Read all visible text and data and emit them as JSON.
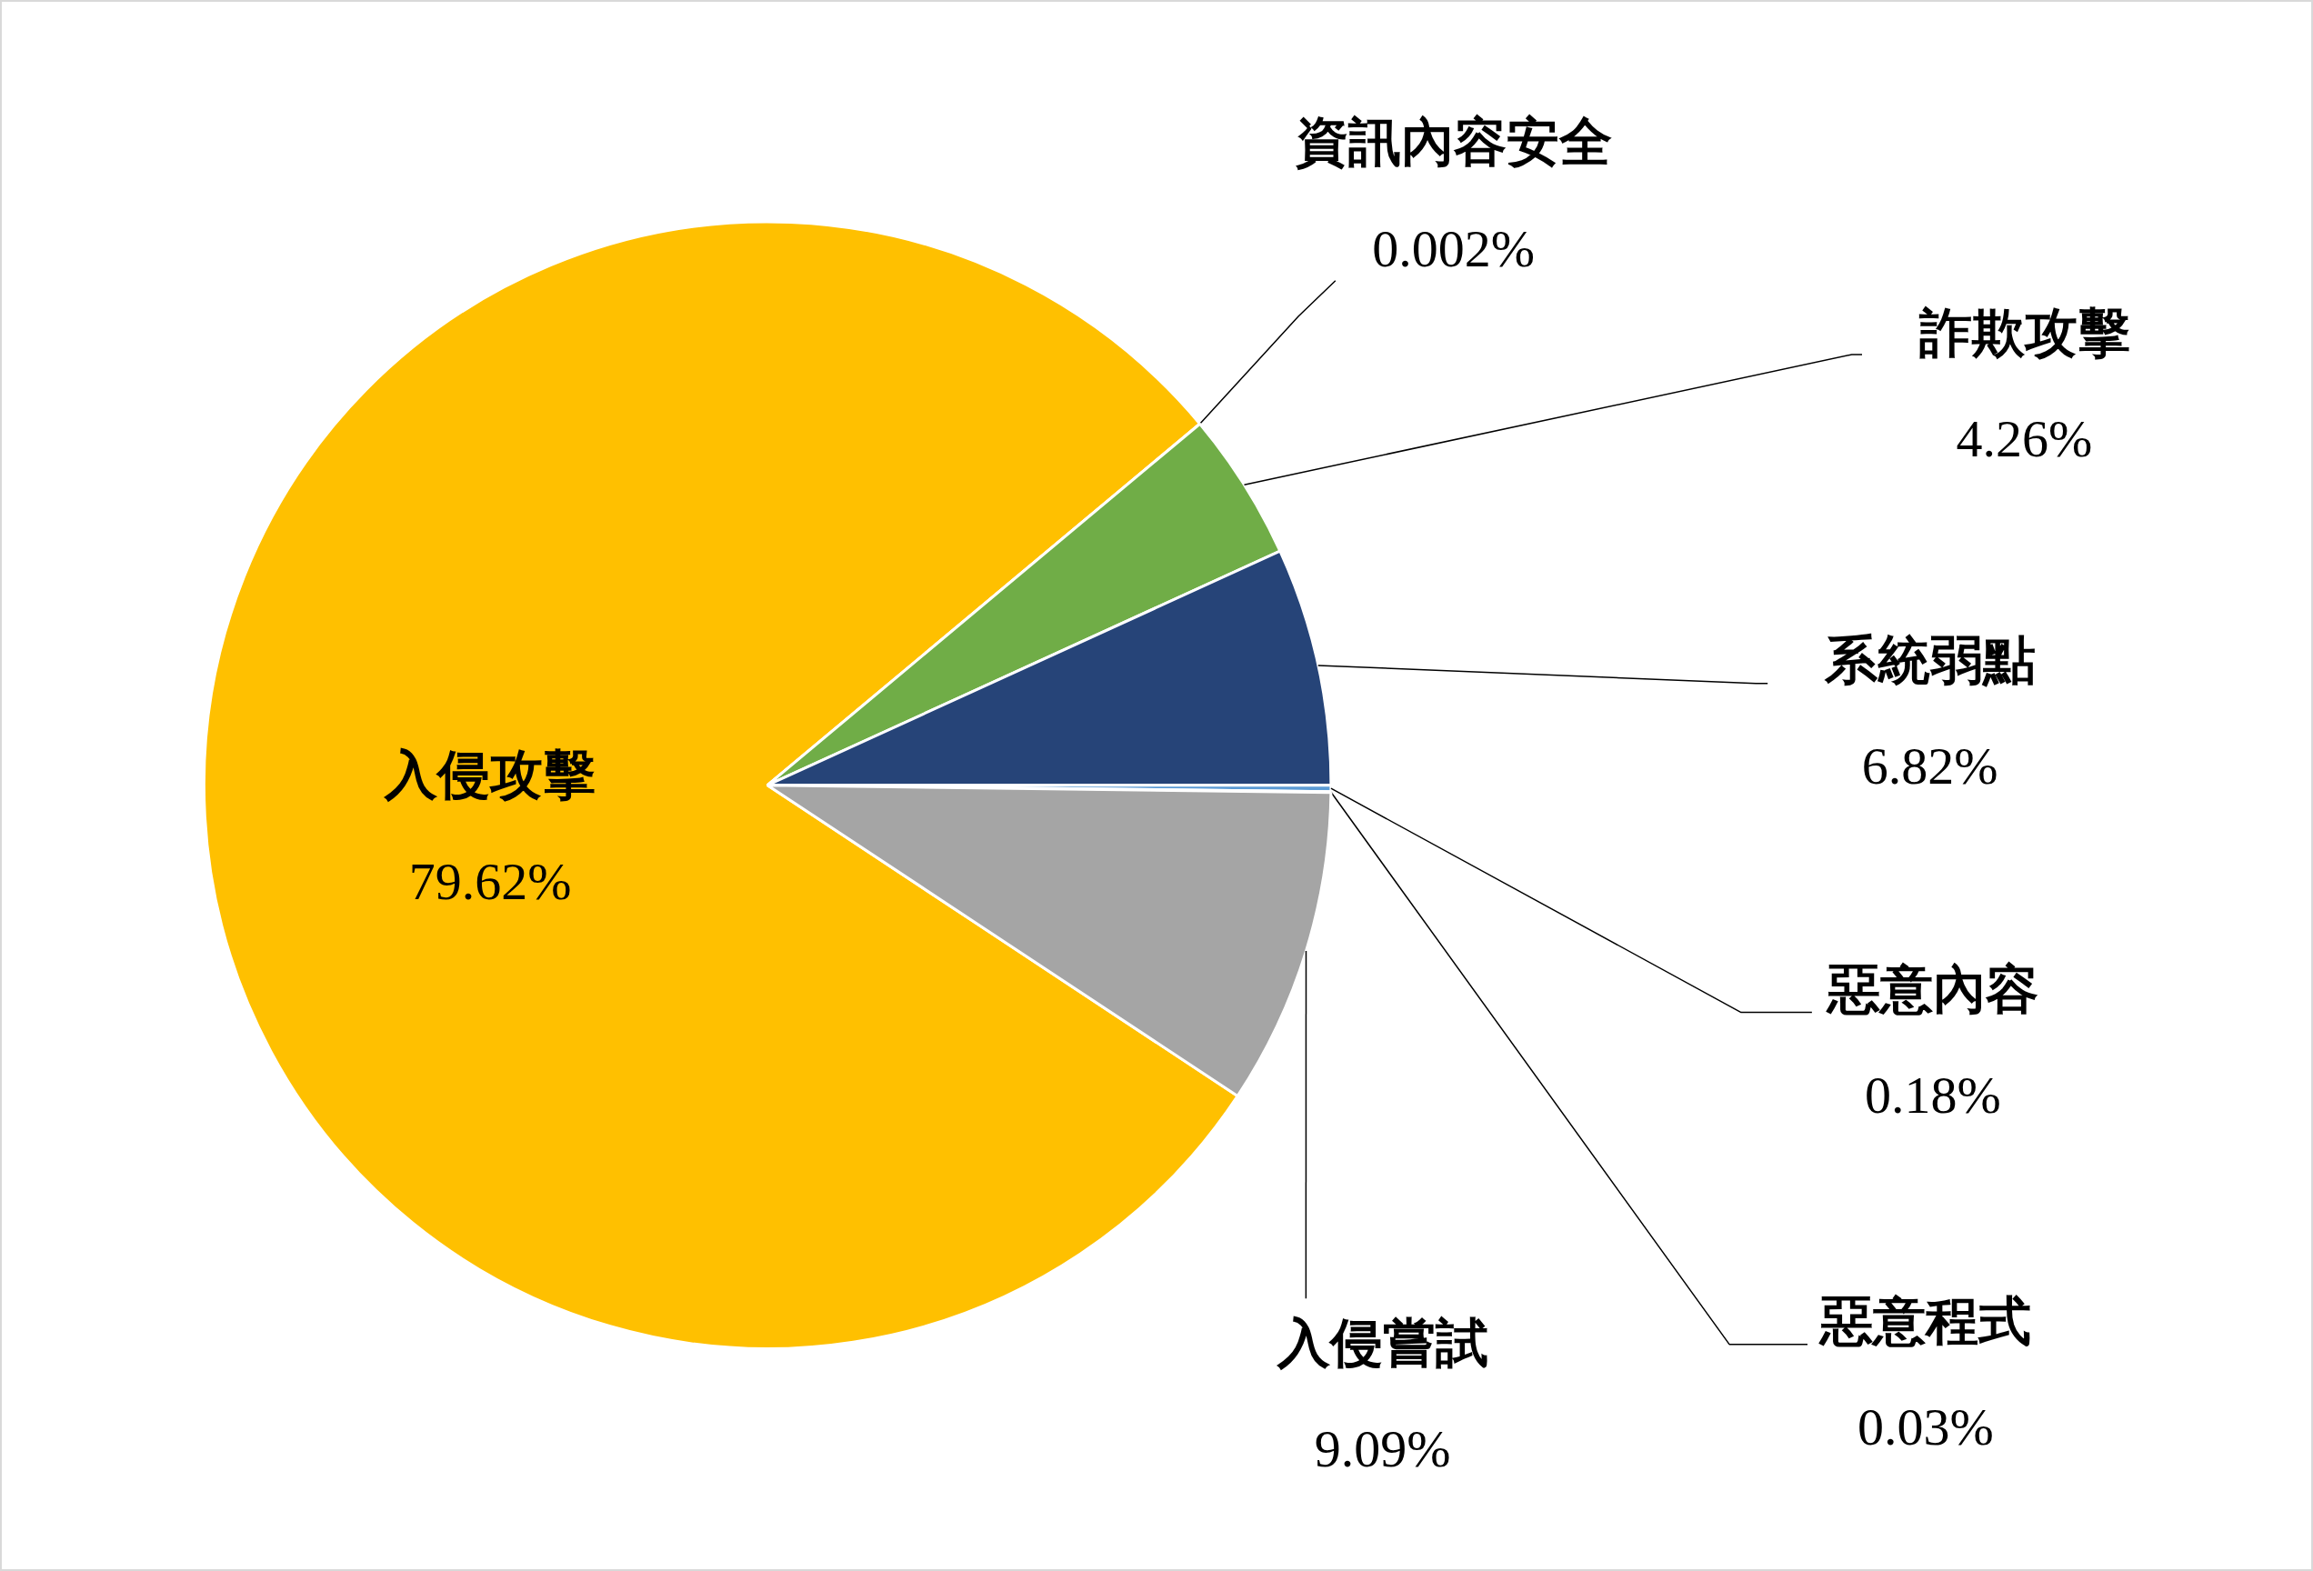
{
  "chart_data": {
    "type": "pie",
    "categories": [
      "入侵攻擊",
      "資訊內容安全",
      "詐欺攻擊",
      "系統弱點",
      "惡意內容",
      "惡意程式",
      "入侵嘗試"
    ],
    "values": [
      79.62,
      0.002,
      4.26,
      6.82,
      0.18,
      0.03,
      9.09
    ],
    "colors": [
      "#ffc000",
      "#c0504d",
      "#70ad47",
      "#264478",
      "#5b9bd5",
      "#7f7f7f",
      "#a5a5a5"
    ],
    "value_labels": [
      "79.62%",
      "0.002%",
      "4.26%",
      "6.82%",
      "0.18%",
      "0.03%",
      "9.09%"
    ]
  }
}
